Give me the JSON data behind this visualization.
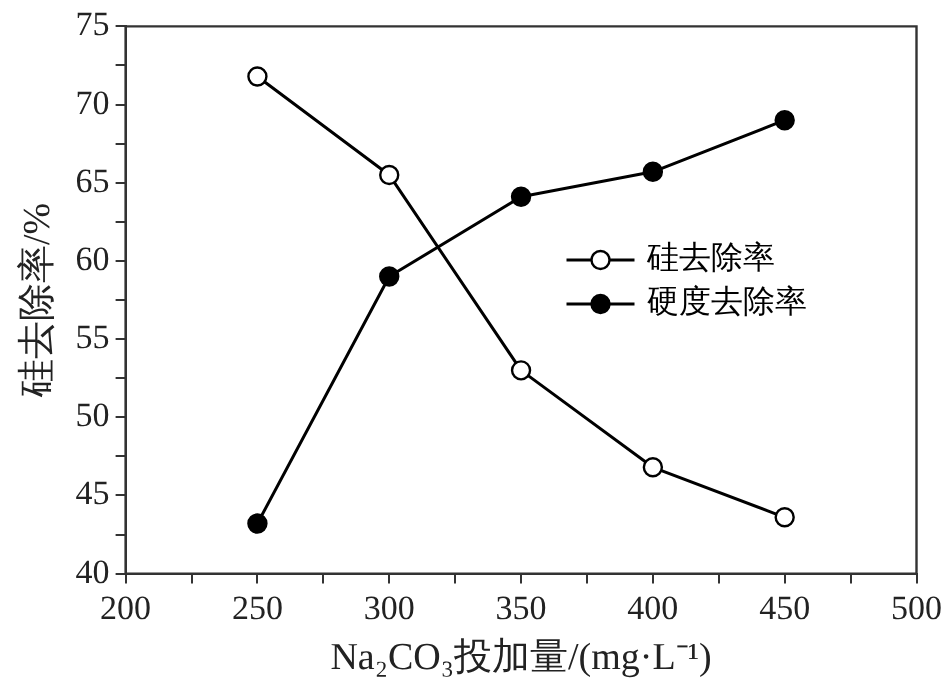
{
  "chart_data": {
    "type": "line",
    "xlabel": "Na₂CO₃投加量/(mg·L⁻¹)",
    "ylabel": "硅去除率/%",
    "x": [
      250,
      300,
      350,
      400,
      450
    ],
    "series": [
      {
        "name": "硅去除率",
        "color": "#000000",
        "values": [
          71.8,
          65.5,
          53.0,
          46.8,
          43.6
        ]
      },
      {
        "name": "硬度去除率",
        "color": "#000000",
        "values": [
          43.2,
          59.0,
          64.1,
          65.7,
          69.0
        ]
      }
    ],
    "xlim": [
      200,
      500
    ],
    "xticks": [
      200,
      {
        "value": 225,
        "label": null
      },
      250,
      {
        "value": 275,
        "label": null
      },
      300,
      {
        "value": 325,
        "label": null
      },
      350,
      {
        "value": 375,
        "label": null
      },
      400,
      {
        "value": 425,
        "label": null
      },
      450,
      {
        "value": 475,
        "label": null
      },
      500
    ],
    "ylim": [
      40,
      75
    ],
    "yticks": [
      40,
      {
        "value": 42.5,
        "label": null
      },
      45,
      {
        "value": 47.5,
        "label": null
      },
      50,
      {
        "value": 52.5,
        "label": null
      },
      55,
      {
        "value": 57.5,
        "label": null
      },
      60,
      {
        "value": 62.5,
        "label": null
      },
      65,
      {
        "value": 67.5,
        "label": null
      },
      70,
      {
        "value": 72.5,
        "label": null
      },
      75
    ],
    "grid": false,
    "legend": "right",
    "marker": "circle",
    "line_style": "solid"
  }
}
